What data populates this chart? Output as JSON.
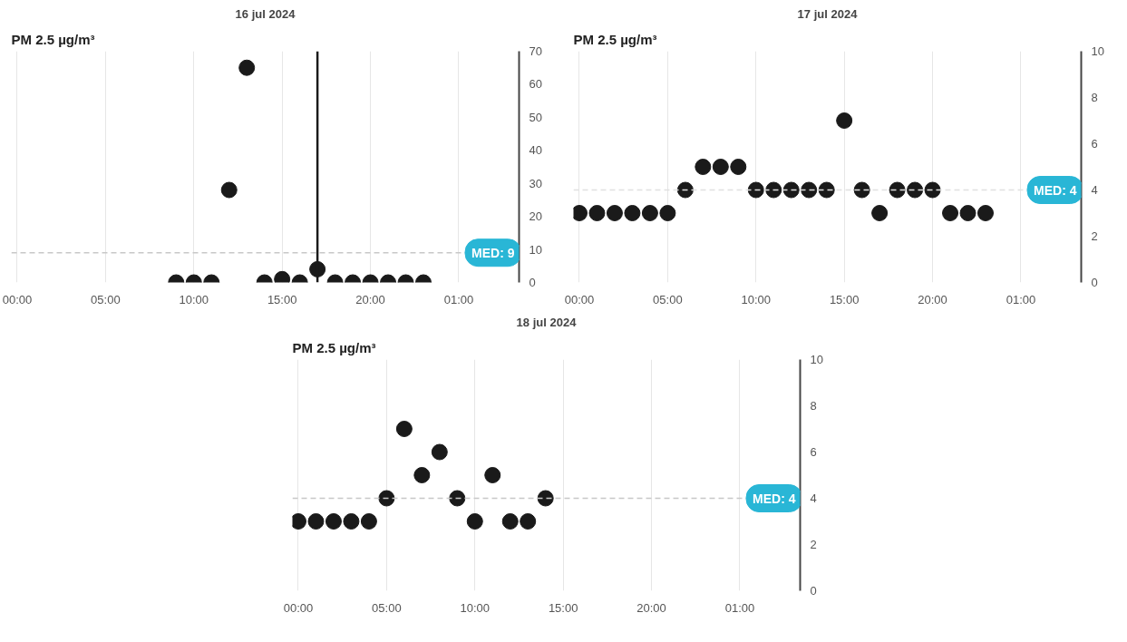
{
  "chart_data": [
    {
      "type": "scatter",
      "title": "16 jul 2024",
      "ylabel": "PM 2.5 µg/m³",
      "x": [
        "2024-07-16T09:00",
        "2024-07-16T10:00",
        "2024-07-16T11:00",
        "2024-07-16T12:00",
        "2024-07-16T13:00",
        "2024-07-16T14:00",
        "2024-07-16T15:00",
        "2024-07-16T16:00",
        "2024-07-16T17:00",
        "2024-07-16T18:00",
        "2024-07-16T19:00",
        "2024-07-16T20:00",
        "2024-07-16T21:00",
        "2024-07-16T22:00",
        "2024-07-16T23:00"
      ],
      "series": [
        {
          "color": "#1a1a1a",
          "values": [
            0,
            0,
            0,
            28,
            65,
            0,
            1,
            0,
            4,
            0,
            0,
            0,
            0,
            0,
            0
          ]
        }
      ],
      "marker": "circle",
      "xlim": [
        "2024-07-15T23:40",
        "2024-07-17T04:25"
      ],
      "xticks": [
        {
          "value": "2024-07-16T00:00",
          "label": "00:00"
        },
        {
          "value": "2024-07-16T05:00",
          "label": "05:00"
        },
        {
          "value": "2024-07-16T10:00",
          "label": "10:00"
        },
        {
          "value": "2024-07-16T15:00",
          "label": "15:00"
        },
        {
          "value": "2024-07-16T20:00",
          "label": "20:00"
        },
        {
          "value": "2024-07-17T01:00",
          "label": "01:00"
        }
      ],
      "ylim": [
        0,
        70
      ],
      "yticks": [
        0,
        10,
        20,
        30,
        40,
        50,
        60,
        70
      ],
      "grid": "x",
      "ref_lines": [
        {
          "axis": "y",
          "value": 9,
          "label": "MED: 9",
          "color": "#c8c8c8",
          "line_style": "dashed"
        },
        {
          "axis": "x",
          "value": "2024-07-16T17:00",
          "color": "#1a1a1a",
          "line_style": "solid"
        }
      ]
    },
    {
      "type": "scatter",
      "title": "17 jul 2024",
      "ylabel": "PM 2.5 µg/m³",
      "x": [
        "2024-07-17T00:00",
        "2024-07-17T01:00",
        "2024-07-17T02:00",
        "2024-07-17T03:00",
        "2024-07-17T04:00",
        "2024-07-17T05:00",
        "2024-07-17T06:00",
        "2024-07-17T07:00",
        "2024-07-17T08:00",
        "2024-07-17T09:00",
        "2024-07-17T10:00",
        "2024-07-17T11:00",
        "2024-07-17T12:00",
        "2024-07-17T13:00",
        "2024-07-17T14:00",
        "2024-07-17T15:00",
        "2024-07-17T16:00",
        "2024-07-17T17:00",
        "2024-07-17T18:00",
        "2024-07-17T19:00",
        "2024-07-17T20:00",
        "2024-07-17T21:00",
        "2024-07-17T22:00",
        "2024-07-17T23:00"
      ],
      "series": [
        {
          "color": "#1a1a1a",
          "values": [
            3,
            3,
            3,
            3,
            3,
            3,
            4,
            5,
            5,
            5,
            4,
            4,
            4,
            4,
            4,
            7,
            4,
            3,
            4,
            4,
            4,
            3,
            3,
            3
          ]
        }
      ],
      "marker": "circle",
      "xlim": [
        "2024-07-16T23:40",
        "2024-07-18T04:25"
      ],
      "xticks": [
        {
          "value": "2024-07-17T00:00",
          "label": "00:00"
        },
        {
          "value": "2024-07-17T05:00",
          "label": "05:00"
        },
        {
          "value": "2024-07-17T10:00",
          "label": "10:00"
        },
        {
          "value": "2024-07-17T15:00",
          "label": "15:00"
        },
        {
          "value": "2024-07-17T20:00",
          "label": "20:00"
        },
        {
          "value": "2024-07-18T01:00",
          "label": "01:00"
        }
      ],
      "ylim": [
        0,
        10
      ],
      "yticks": [
        0,
        2,
        4,
        6,
        8,
        10
      ],
      "grid": "x",
      "ref_lines": [
        {
          "axis": "y",
          "value": 4,
          "label": "MED: 4",
          "color": "#e0e0e0",
          "line_style": "dashed"
        }
      ]
    },
    {
      "type": "scatter",
      "title": "18 jul 2024",
      "ylabel": "PM 2.5 µg/m³",
      "x": [
        "2024-07-18T00:00",
        "2024-07-18T01:00",
        "2024-07-18T02:00",
        "2024-07-18T03:00",
        "2024-07-18T04:00",
        "2024-07-18T05:00",
        "2024-07-18T06:00",
        "2024-07-18T07:00",
        "2024-07-18T08:00",
        "2024-07-18T09:00",
        "2024-07-18T10:00",
        "2024-07-18T11:00",
        "2024-07-18T12:00",
        "2024-07-18T13:00",
        "2024-07-18T14:00"
      ],
      "series": [
        {
          "color": "#1a1a1a",
          "values": [
            3,
            3,
            3,
            3,
            3,
            4,
            7,
            5,
            6,
            4,
            3,
            5,
            3,
            3,
            4
          ]
        }
      ],
      "marker": "circle",
      "xlim": [
        "2024-07-17T23:40",
        "2024-07-19T04:25"
      ],
      "xticks": [
        {
          "value": "2024-07-18T00:00",
          "label": "00:00"
        },
        {
          "value": "2024-07-18T05:00",
          "label": "05:00"
        },
        {
          "value": "2024-07-18T10:00",
          "label": "10:00"
        },
        {
          "value": "2024-07-18T15:00",
          "label": "15:00"
        },
        {
          "value": "2024-07-18T20:00",
          "label": "20:00"
        },
        {
          "value": "2024-07-19T01:00",
          "label": "01:00"
        }
      ],
      "ylim": [
        0,
        10
      ],
      "yticks": [
        0,
        2,
        4,
        6,
        8,
        10
      ],
      "grid": "x",
      "ref_lines": [
        {
          "axis": "y",
          "value": 4,
          "label": "MED: 4",
          "color": "#c8c8c8",
          "line_style": "dashed"
        }
      ]
    }
  ]
}
